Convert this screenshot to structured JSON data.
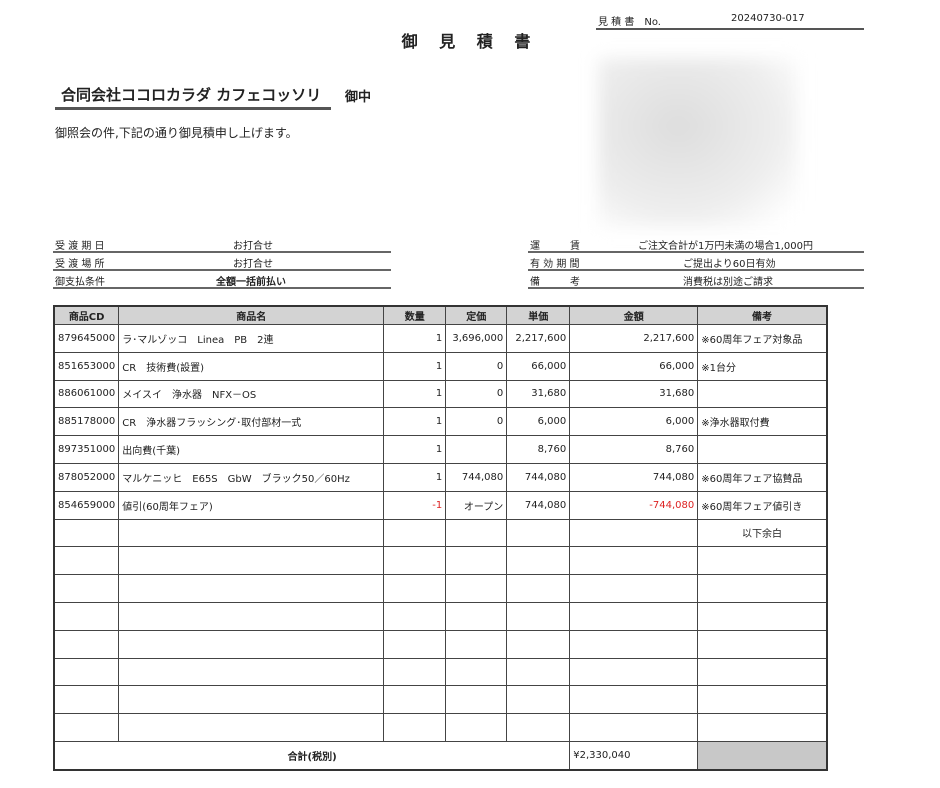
{
  "header": {
    "title": "御 見 積 書",
    "estimate_no_label": "見 積 書　No.",
    "estimate_no": "20240730-017"
  },
  "client": {
    "name": "合同会社ココロカラダ カフェコッソリ",
    "honorific": "御中"
  },
  "greeting": "御照会の件,下記の通り御見積申し上げます。",
  "conditions_left": [
    {
      "label": "受 渡 期 日",
      "value": "お打合せ"
    },
    {
      "label": "受 渡 場 所",
      "value": "お打合せ"
    },
    {
      "label": "御支払条件",
      "value": "全額一括前払い"
    }
  ],
  "conditions_right": [
    {
      "label": "運　　　賃",
      "value": "ご注文合計が1万円未満の場合1,000円"
    },
    {
      "label": "有 効 期 間",
      "value": "ご提出より60日有効"
    },
    {
      "label": "備　　　考",
      "value": "消費税は別途ご請求"
    }
  ],
  "table": {
    "headers": [
      "商品CD",
      "商品名",
      "数量",
      "定価",
      "単価",
      "金額",
      "備考"
    ],
    "rows": [
      [
        "879645000",
        "ラ･マルゾッコ　Linea　PB　2連",
        "1",
        "3,696,000",
        "2,217,600",
        "2,217,600",
        "※60周年フェア対象品"
      ],
      [
        "851653000",
        "CR　技術費(設置)",
        "1",
        "0",
        "66,000",
        "66,000",
        "※1台分"
      ],
      [
        "886061000",
        "メイスイ　浄水器　NFX－OS",
        "1",
        "0",
        "31,680",
        "31,680",
        ""
      ],
      [
        "885178000",
        "CR　浄水器フラッシング･取付部材一式",
        "1",
        "0",
        "6,000",
        "6,000",
        "※浄水器取付費"
      ],
      [
        "897351000",
        "出向費(千葉)",
        "1",
        "",
        "8,760",
        "8,760",
        ""
      ],
      [
        "878052000",
        "マルケニッヒ　E65S　GbW　ブラック50／60Hz",
        "1",
        "744,080",
        "744,080",
        "744,080",
        "※60周年フェア協賛品"
      ],
      [
        "854659000",
        "値引(60周年フェア)",
        "-1",
        "オープン",
        "744,080",
        "-744,080",
        "※60周年フェア値引き"
      ]
    ],
    "remainder_note": "以下余白",
    "total_label": "合計(税別)",
    "total_value": "¥2,330,040"
  },
  "colors": {
    "negative": "#dd2222",
    "header_bg": "#d3d3d3"
  }
}
